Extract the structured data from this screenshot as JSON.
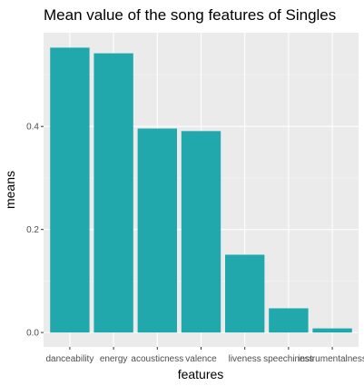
{
  "chart_data": {
    "type": "bar",
    "title": "Mean value of the song features of Singles",
    "xlabel": "features",
    "ylabel": "means",
    "categories": [
      "danceability",
      "energy",
      "acousticness",
      "valence",
      "liveness",
      "speechiness",
      "instrumentalness"
    ],
    "values": [
      0.553,
      0.542,
      0.396,
      0.391,
      0.151,
      0.047,
      0.008
    ],
    "ylim": [
      -0.028,
      0.582
    ],
    "yticks": [
      0.0,
      0.2,
      0.4
    ],
    "ytick_labels": [
      "0.0",
      "0.2",
      "0.4"
    ],
    "grid": true,
    "legend": "none",
    "colors": {
      "bar": "#20A8AC",
      "panel": "#EBEBEB",
      "grid_major": "#FFFFFF",
      "tick_text": "#4D4D4D",
      "tick_mark": "#333333"
    }
  }
}
